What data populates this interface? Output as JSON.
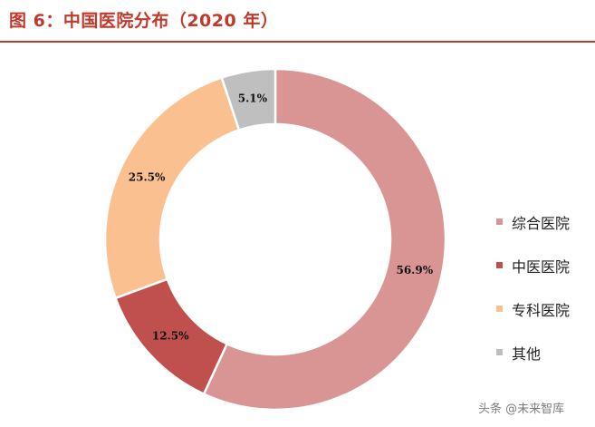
{
  "title": "图 6：中国医院分布（2020 年）",
  "watermark": "头条 @未来智库",
  "chart_data": {
    "type": "pie",
    "variant": "donut",
    "title": "图 6：中国医院分布（2020 年）",
    "categories": [
      "综合医院",
      "中医医院",
      "专科医院",
      "其他"
    ],
    "values": [
      56.9,
      12.5,
      25.5,
      5.1
    ],
    "labels": [
      "56.9%",
      "12.5%",
      "25.5%",
      "5.1%"
    ],
    "colors": [
      "#d99594",
      "#c0504d",
      "#fac090",
      "#bfbfbf"
    ],
    "legend_position": "right"
  }
}
